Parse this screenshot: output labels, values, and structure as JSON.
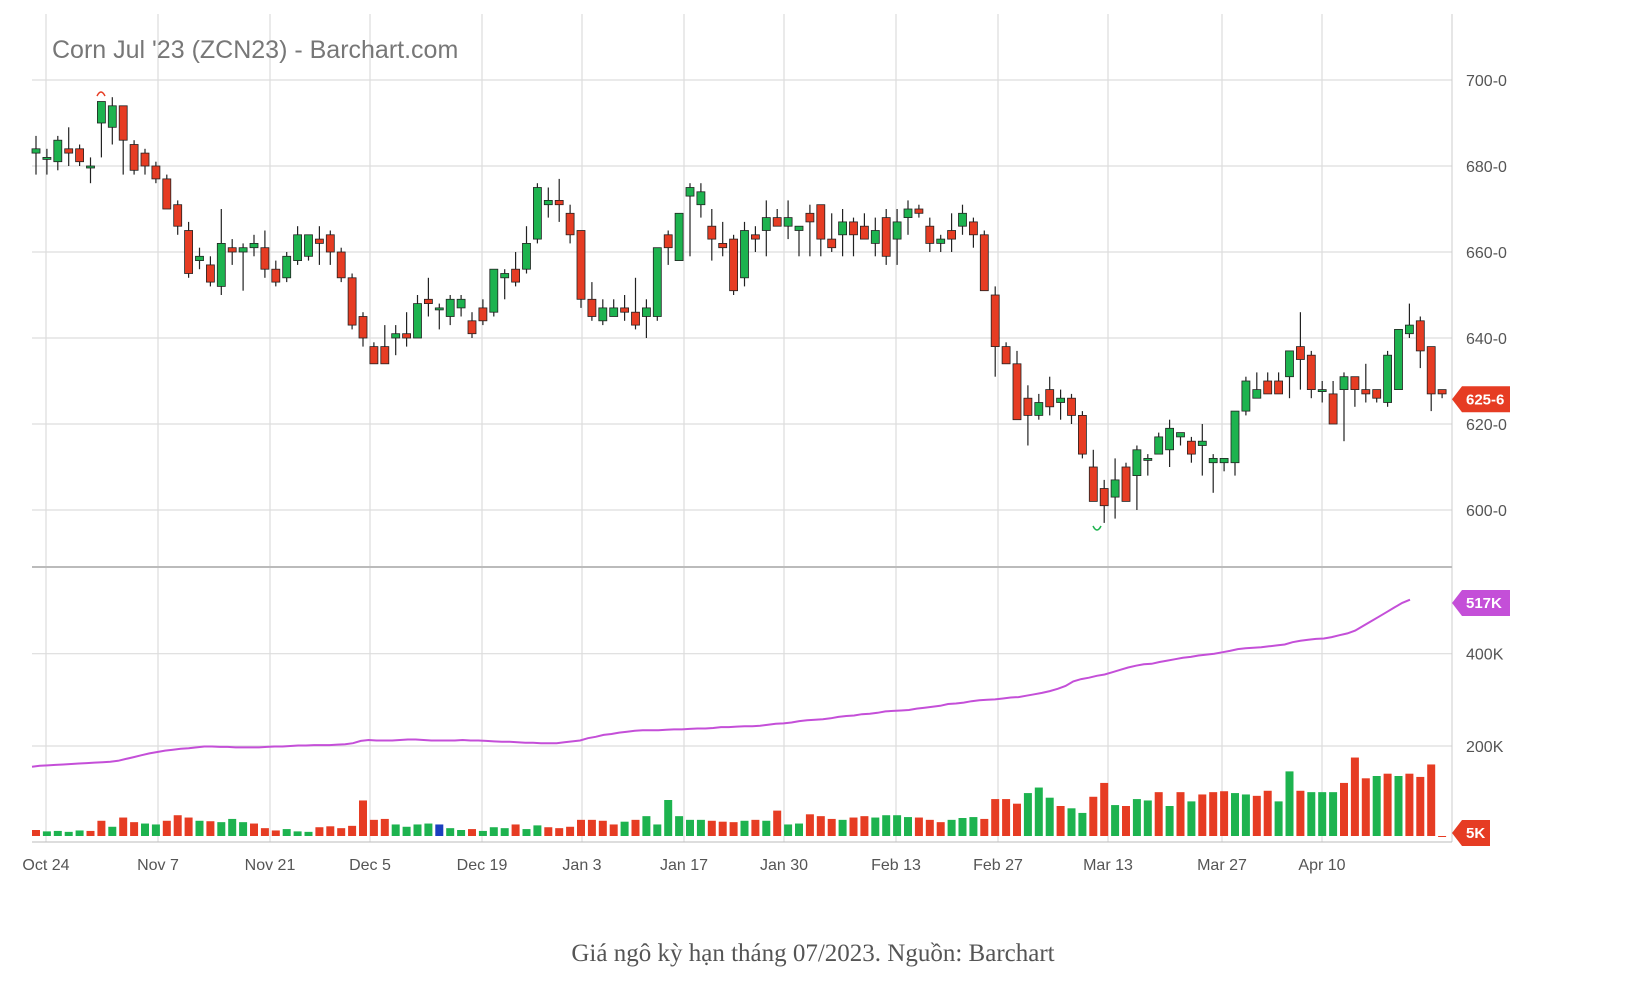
{
  "caption": "Giá ngô kỳ hạn tháng 07/2023. Nguồn: Barchart",
  "colors": {
    "up": "#1db34f",
    "down": "#e63c23",
    "neutral": "#1a3fbf",
    "open_interest": "#c44fd8",
    "grid": "#dddddd",
    "wick": "#222222"
  },
  "chart_data": {
    "type": "candlestick",
    "title": "Corn Jul '23 (ZCN23) - Barchart.com",
    "x_ticks": [
      "Oct 24",
      "Nov 7",
      "Nov 21",
      "Dec 5",
      "Dec 19",
      "Jan 3",
      "Jan 17",
      "Jan 30",
      "Feb 13",
      "Feb 27",
      "Mar 13",
      "Mar 27",
      "Apr 10"
    ],
    "price_axis": {
      "ticks": [
        "600-0",
        "620-0",
        "640-0",
        "660-0",
        "680-0",
        "700-0"
      ],
      "ylim": [
        586,
        712
      ],
      "last_price_label": "625-6",
      "last_price": 625.75
    },
    "volume_axis": {
      "ticks": [
        "5K",
        "200K",
        "400K"
      ],
      "ylim": [
        0,
        600000
      ],
      "open_interest_last_label": "517K",
      "volume_last_label": "5K"
    },
    "price_ohlc": [
      [
        683,
        687,
        678,
        684
      ],
      [
        682,
        684,
        678,
        682
      ],
      [
        681,
        687,
        679,
        686
      ],
      [
        684,
        689,
        680,
        683
      ],
      [
        684,
        685,
        680,
        681
      ],
      [
        680,
        682,
        676,
        680
      ],
      [
        690,
        694,
        682,
        695
      ],
      [
        689,
        696,
        685,
        694
      ],
      [
        694,
        694,
        678,
        686
      ],
      [
        685,
        686,
        678,
        679
      ],
      [
        683,
        684,
        678,
        680
      ],
      [
        680,
        681,
        676,
        677
      ],
      [
        677,
        678,
        670,
        670
      ],
      [
        671,
        672,
        664,
        666
      ],
      [
        665,
        667,
        654,
        655
      ],
      [
        658,
        661,
        656,
        659
      ],
      [
        657,
        659,
        652,
        653
      ],
      [
        652,
        670,
        650,
        662
      ],
      [
        661,
        663,
        657,
        660
      ],
      [
        660,
        662,
        651,
        661
      ],
      [
        661,
        664,
        659,
        662
      ],
      [
        661,
        665,
        654,
        656
      ],
      [
        656,
        658,
        652,
        653
      ],
      [
        654,
        660,
        653,
        659
      ],
      [
        658,
        666,
        657,
        664
      ],
      [
        659,
        664,
        658,
        664
      ],
      [
        663,
        666,
        657,
        662
      ],
      [
        664,
        665,
        657,
        660
      ],
      [
        660,
        661,
        653,
        654
      ],
      [
        654,
        655,
        642,
        643
      ],
      [
        645,
        646,
        638,
        640
      ],
      [
        638,
        639,
        634,
        634
      ],
      [
        638,
        643,
        634,
        634
      ],
      [
        640,
        643,
        636,
        641
      ],
      [
        641,
        646,
        638,
        640
      ],
      [
        640,
        650,
        640,
        648
      ],
      [
        649,
        654,
        645,
        648
      ],
      [
        647,
        648,
        642,
        647
      ],
      [
        645,
        650,
        643,
        649
      ],
      [
        647,
        650,
        645,
        649
      ],
      [
        644,
        646,
        640,
        641
      ],
      [
        647,
        649,
        643,
        644
      ],
      [
        646,
        656,
        645,
        656
      ],
      [
        654,
        656,
        649,
        655
      ],
      [
        656,
        660,
        652,
        653
      ],
      [
        656,
        666,
        655,
        662
      ],
      [
        663,
        676,
        662,
        675
      ],
      [
        671,
        675,
        668,
        672
      ],
      [
        672,
        677,
        667,
        671
      ],
      [
        669,
        671,
        662,
        664
      ],
      [
        665,
        665,
        647,
        649
      ],
      [
        649,
        653,
        644,
        645
      ],
      [
        644,
        649,
        643,
        647
      ],
      [
        645,
        649,
        645,
        647
      ],
      [
        647,
        650,
        644,
        646
      ],
      [
        646,
        654,
        642,
        643
      ],
      [
        645,
        649,
        640,
        647
      ],
      [
        645,
        661,
        644,
        661
      ],
      [
        664,
        665,
        657,
        661
      ],
      [
        658,
        666,
        658,
        669
      ],
      [
        673,
        676,
        659,
        675
      ],
      [
        671,
        676,
        668,
        674
      ],
      [
        666,
        670,
        658,
        663
      ],
      [
        662,
        667,
        659,
        661
      ],
      [
        663,
        664,
        650,
        651
      ],
      [
        654,
        667,
        652,
        665
      ],
      [
        664,
        666,
        660,
        663
      ],
      [
        665,
        672,
        659,
        668
      ],
      [
        668,
        670,
        666,
        666
      ],
      [
        666,
        672,
        663,
        668
      ],
      [
        665,
        666,
        659,
        666
      ],
      [
        669,
        671,
        659,
        667
      ],
      [
        671,
        671,
        659,
        663
      ],
      [
        663,
        669,
        660,
        661
      ],
      [
        664,
        670,
        659,
        667
      ],
      [
        667,
        668,
        659,
        664
      ],
      [
        666,
        669,
        663,
        663
      ],
      [
        662,
        668,
        659,
        665
      ],
      [
        668,
        670,
        657,
        659
      ],
      [
        663,
        670,
        657,
        667
      ],
      [
        668,
        672,
        664,
        670
      ],
      [
        670,
        671,
        668,
        669
      ],
      [
        666,
        668,
        660,
        662
      ],
      [
        662,
        664,
        660,
        663
      ],
      [
        665,
        669,
        660,
        663
      ],
      [
        666,
        671,
        664,
        669
      ],
      [
        667,
        668,
        661,
        664
      ],
      [
        664,
        665,
        651,
        651
      ],
      [
        650,
        652,
        631,
        638
      ],
      [
        638,
        639,
        634,
        634
      ],
      [
        634,
        637,
        622,
        621
      ],
      [
        626,
        629,
        615,
        622
      ],
      [
        622,
        627,
        621,
        625
      ],
      [
        628,
        631,
        622,
        624
      ],
      [
        625,
        628,
        621,
        626
      ],
      [
        626,
        627,
        620,
        622
      ],
      [
        622,
        623,
        612,
        613
      ],
      [
        610,
        614,
        605,
        602
      ],
      [
        605,
        607,
        597,
        601
      ],
      [
        603,
        612,
        598,
        607
      ],
      [
        610,
        611,
        605,
        602
      ],
      [
        608,
        615,
        600,
        614
      ],
      [
        612,
        613,
        608,
        612
      ],
      [
        613,
        618,
        614,
        617
      ],
      [
        614,
        621,
        610,
        619
      ],
      [
        617,
        618,
        615,
        618
      ],
      [
        616,
        617,
        611,
        613
      ],
      [
        615,
        620,
        608,
        616
      ],
      [
        611,
        613,
        604,
        612
      ],
      [
        611,
        612,
        609,
        612
      ],
      [
        611,
        623,
        608,
        623
      ],
      [
        623,
        631,
        622,
        630
      ],
      [
        626,
        632,
        626,
        628
      ],
      [
        630,
        632,
        628,
        627
      ],
      [
        630,
        632,
        627,
        627
      ],
      [
        631,
        636,
        626,
        637
      ],
      [
        638,
        646,
        628,
        635
      ],
      [
        636,
        637,
        626,
        628
      ],
      [
        628,
        630,
        625,
        628
      ],
      [
        627,
        630,
        620,
        620
      ],
      [
        628,
        632,
        616,
        631
      ],
      [
        631,
        631,
        624,
        628
      ],
      [
        628,
        634,
        625,
        627
      ],
      [
        628,
        628,
        625,
        626
      ],
      [
        625,
        637,
        624,
        636
      ],
      [
        628,
        637,
        630,
        642
      ],
      [
        641,
        648,
        640,
        643
      ],
      [
        644,
        645,
        633,
        637
      ],
      [
        638,
        637,
        623,
        627
      ],
      [
        628,
        627,
        626,
        627
      ]
    ],
    "volume": [
      18000,
      15000,
      16000,
      14000,
      17000,
      16000,
      38000,
      25000,
      45000,
      35000,
      32000,
      30000,
      38000,
      50000,
      45000,
      38000,
      37000,
      35000,
      42000,
      35000,
      32000,
      22000,
      17000,
      20000,
      15000,
      14000,
      24000,
      26000,
      22000,
      27000,
      82000,
      40000,
      42000,
      30000,
      25000,
      30000,
      32000,
      30000,
      22000,
      18000,
      20000,
      16000,
      24000,
      22000,
      30000,
      20000,
      28000,
      24000,
      22000,
      25000,
      40000,
      40000,
      38000,
      30000,
      36000,
      40000,
      48000,
      30000,
      83000,
      48000,
      40000,
      40000,
      38000,
      36000,
      35000,
      38000,
      40000,
      38000,
      60000,
      30000,
      32000,
      52000,
      48000,
      42000,
      40000,
      45000,
      48000,
      45000,
      50000,
      50000,
      46000,
      45000,
      40000,
      35000,
      40000,
      44000,
      46000,
      42000,
      85000,
      85000,
      75000,
      98000,
      110000,
      88000,
      70000,
      65000,
      55000,
      90000,
      120000,
      72000,
      70000,
      85000,
      82000,
      100000,
      70000,
      100000,
      80000,
      95000,
      100000,
      102000,
      98000,
      95000,
      92000,
      103000,
      80000,
      145000,
      103000,
      100000,
      100000,
      100000,
      120000,
      175000,
      130000,
      135000,
      140000,
      135000,
      140000,
      133000,
      160000,
      5000
    ],
    "volume_up": [
      false,
      true,
      true,
      true,
      true,
      false,
      false,
      true,
      false,
      false,
      true,
      true,
      false,
      false,
      false,
      true,
      false,
      true,
      true,
      true,
      false,
      false,
      false,
      true,
      true,
      true,
      false,
      false,
      false,
      false,
      false,
      false,
      false,
      true,
      true,
      true,
      true,
      true,
      true,
      true,
      false,
      true,
      true,
      true,
      false,
      true,
      true,
      false,
      false,
      false,
      false,
      false,
      false,
      false,
      true,
      false,
      true,
      true,
      true,
      true,
      true,
      true,
      false,
      false,
      false,
      true,
      false,
      true,
      false,
      true,
      true,
      false,
      false,
      false,
      true,
      false,
      false,
      true,
      true,
      true,
      true,
      false,
      false,
      false,
      true,
      true,
      true,
      false,
      false,
      false,
      false,
      true,
      true,
      true,
      false,
      true,
      true,
      false,
      false,
      true,
      false,
      true,
      true,
      false,
      true,
      false,
      true,
      false,
      false,
      false,
      true,
      true,
      false,
      false,
      true,
      true,
      false,
      true,
      true,
      true,
      false,
      false,
      false,
      true,
      false,
      true,
      false,
      false,
      false,
      false
    ],
    "volume_blue_indices": [
      37
    ],
    "open_interest": [
      155000,
      157000,
      158000,
      159000,
      160000,
      161000,
      162000,
      163000,
      164000,
      165000,
      166000,
      168000,
      172000,
      176000,
      180000,
      184000,
      187000,
      190000,
      192000,
      194000,
      195000,
      197000,
      199000,
      199000,
      198000,
      198000,
      197000,
      197000,
      197000,
      197000,
      198000,
      199000,
      199000,
      200000,
      201000,
      201000,
      202000,
      202000,
      202000,
      203000,
      204000,
      206000,
      211000,
      213000,
      212000,
      212000,
      212000,
      213000,
      214000,
      214000,
      213000,
      212000,
      212000,
      212000,
      212000,
      213000,
      212000,
      212000,
      211000,
      210000,
      209000,
      209000,
      208000,
      207000,
      207000,
      206000,
      206000,
      206000,
      208000,
      210000,
      212000,
      217000,
      220000,
      224000,
      226000,
      229000,
      231000,
      233000,
      234000,
      234000,
      234000,
      235000,
      236000,
      236000,
      237000,
      238000,
      238000,
      239000,
      241000,
      241000,
      242000,
      243000,
      243000,
      244000,
      246000,
      248000,
      249000,
      251000,
      254000,
      256000,
      257000,
      258000,
      260000,
      263000,
      265000,
      266000,
      269000,
      270000,
      272000,
      275000,
      276000,
      277000,
      278000,
      281000,
      283000,
      285000,
      287000,
      291000,
      292000,
      294000,
      297000,
      299000,
      300000,
      301000,
      303000,
      305000,
      306000,
      309000,
      312000,
      315000,
      319000,
      324000,
      330000,
      340000,
      345000,
      348000,
      352000,
      355000,
      360000,
      365000,
      370000,
      374000,
      377000,
      378000,
      382000,
      385000,
      388000,
      391000,
      393000,
      396000,
      398000,
      400000,
      403000,
      406000,
      410000,
      412000,
      413000,
      414000,
      416000,
      418000,
      420000,
      425000,
      428000,
      430000,
      432000,
      433000,
      436000,
      440000,
      444000,
      450000,
      460000,
      470000,
      480000,
      490000,
      500000,
      510000,
      517000
    ]
  }
}
